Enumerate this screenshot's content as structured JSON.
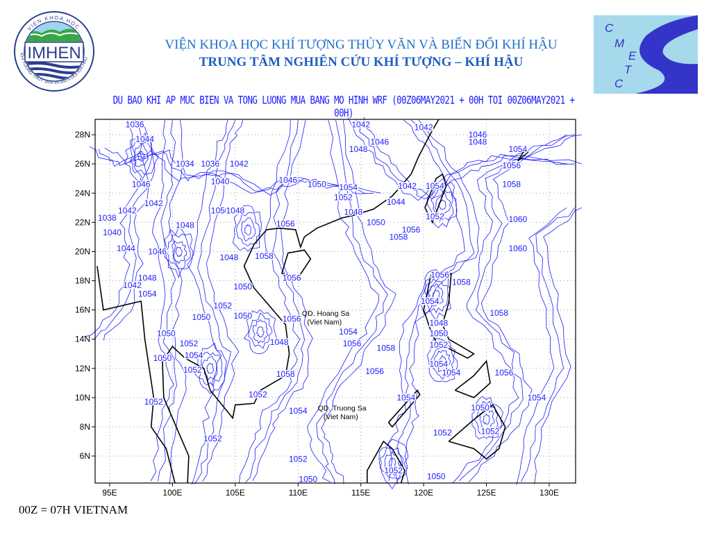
{
  "header": {
    "institute": "VIỆN KHOA HỌC KHÍ TƯỢNG THỦY VĂN VÀ BIẾN ĐỔI KHÍ HẬU",
    "center": "TRUNG TÂM NGHIÊN CỨU KHÍ TƯỢNG – KHÍ HẬU",
    "subtitle": "DU BAO KHI AP MUC BIEN VA TONG LUONG MUA BANG MO HINH WRF (00Z06MAY2021 + 00H TOI 00Z06MAY2021 + 00H)"
  },
  "logos": {
    "left": {
      "text": "IMHEN",
      "ring_top": "VIEN KHOA HOC",
      "ring_bottom": "KHI TUONG THUY VAN VA BIEN DOI KHI HAU"
    },
    "right": {
      "letters": [
        "C",
        "M",
        "E",
        "T",
        "C"
      ]
    }
  },
  "footer": {
    "note": "00Z = 07H VIETNAM"
  },
  "map": {
    "lon_range": [
      93.84,
      132.1
    ],
    "lat_range": [
      4.15,
      29.05
    ],
    "lon_ticks": [
      {
        "v": 95,
        "label": "95E"
      },
      {
        "v": 100,
        "label": "100E"
      },
      {
        "v": 105,
        "label": "105E"
      },
      {
        "v": 110,
        "label": "110E"
      },
      {
        "v": 115,
        "label": "115E"
      },
      {
        "v": 120,
        "label": "120E"
      },
      {
        "v": 125,
        "label": "125E"
      },
      {
        "v": 130,
        "label": "130E"
      }
    ],
    "lat_ticks": [
      {
        "v": 6,
        "label": "6N"
      },
      {
        "v": 8,
        "label": "8N"
      },
      {
        "v": 10,
        "label": "10N"
      },
      {
        "v": 12,
        "label": "12N"
      },
      {
        "v": 14,
        "label": "14N"
      },
      {
        "v": 16,
        "label": "16N"
      },
      {
        "v": 18,
        "label": "18N"
      },
      {
        "v": 20,
        "label": "20N"
      },
      {
        "v": 22,
        "label": "22N"
      },
      {
        "v": 24,
        "label": "24N"
      },
      {
        "v": 26,
        "label": "26N"
      },
      {
        "v": 28,
        "label": "28N"
      }
    ],
    "grid": true,
    "colors": {
      "contour": "#1a1aff",
      "coast": "#000000",
      "grid": "#9a9a9a"
    },
    "contour_labels": [
      {
        "t": "1036",
        "lon": 97.0,
        "lat": 28.7
      },
      {
        "t": "1044",
        "lon": 97.8,
        "lat": 27.7
      },
      {
        "t": "1042",
        "lon": 115.0,
        "lat": 28.7
      },
      {
        "t": "1042",
        "lon": 120.0,
        "lat": 28.5
      },
      {
        "t": "1048",
        "lon": 114.8,
        "lat": 27.0
      },
      {
        "t": "1046",
        "lon": 116.5,
        "lat": 27.5
      },
      {
        "t": "1046",
        "lon": 124.3,
        "lat": 28.0
      },
      {
        "t": "1048",
        "lon": 124.3,
        "lat": 27.5
      },
      {
        "t": "1054",
        "lon": 127.5,
        "lat": 27.0
      },
      {
        "t": "1056",
        "lon": 127.0,
        "lat": 25.9
      },
      {
        "t": "1058",
        "lon": 127.0,
        "lat": 24.6
      },
      {
        "t": "1034",
        "lon": 101.0,
        "lat": 26.0
      },
      {
        "t": "1036",
        "lon": 103.0,
        "lat": 26.0
      },
      {
        "t": "1042",
        "lon": 105.3,
        "lat": 26.0
      },
      {
        "t": "1040",
        "lon": 103.8,
        "lat": 24.8
      },
      {
        "t": "1046",
        "lon": 109.2,
        "lat": 24.9
      },
      {
        "t": "1050",
        "lon": 111.5,
        "lat": 24.6
      },
      {
        "t": "1054",
        "lon": 114.0,
        "lat": 24.4
      },
      {
        "t": "1052",
        "lon": 113.6,
        "lat": 23.7
      },
      {
        "t": "1044",
        "lon": 117.8,
        "lat": 23.4
      },
      {
        "t": "1042",
        "lon": 118.7,
        "lat": 24.5
      },
      {
        "t": "1054",
        "lon": 120.9,
        "lat": 24.5
      },
      {
        "t": "1048",
        "lon": 114.4,
        "lat": 22.7
      },
      {
        "t": "1050",
        "lon": 116.2,
        "lat": 22.0
      },
      {
        "t": "1052",
        "lon": 120.9,
        "lat": 22.4
      },
      {
        "t": "1046",
        "lon": 97.5,
        "lat": 24.6
      },
      {
        "t": "1042",
        "lon": 98.5,
        "lat": 23.3
      },
      {
        "t": "1042",
        "lon": 96.4,
        "lat": 22.8
      },
      {
        "t": "1038",
        "lon": 94.8,
        "lat": 22.3
      },
      {
        "t": "1040",
        "lon": 95.2,
        "lat": 21.3
      },
      {
        "t": "1044",
        "lon": 96.3,
        "lat": 20.2
      },
      {
        "t": "1046",
        "lon": 98.8,
        "lat": 20.0
      },
      {
        "t": "1048",
        "lon": 101.0,
        "lat": 21.8
      },
      {
        "t": "1050",
        "lon": 103.8,
        "lat": 22.8
      },
      {
        "t": "1048",
        "lon": 105.0,
        "lat": 22.8
      },
      {
        "t": "1056",
        "lon": 109.0,
        "lat": 21.9
      },
      {
        "t": "1056",
        "lon": 119.0,
        "lat": 21.5
      },
      {
        "t": "1058",
        "lon": 118.0,
        "lat": 21.0
      },
      {
        "t": "1060",
        "lon": 127.5,
        "lat": 22.2
      },
      {
        "t": "1060",
        "lon": 127.5,
        "lat": 20.2
      },
      {
        "t": "1048",
        "lon": 104.5,
        "lat": 19.6
      },
      {
        "t": "1058",
        "lon": 107.3,
        "lat": 19.7
      },
      {
        "t": "1056",
        "lon": 109.5,
        "lat": 18.2
      },
      {
        "t": "1048",
        "lon": 98.0,
        "lat": 18.2
      },
      {
        "t": "1042",
        "lon": 96.8,
        "lat": 17.7
      },
      {
        "t": "1054",
        "lon": 98.0,
        "lat": 17.1
      },
      {
        "t": "1050",
        "lon": 105.6,
        "lat": 17.6
      },
      {
        "t": "1052",
        "lon": 104.0,
        "lat": 16.3
      },
      {
        "t": "1050",
        "lon": 102.3,
        "lat": 15.5
      },
      {
        "t": "1050",
        "lon": 105.6,
        "lat": 15.6
      },
      {
        "t": "1056",
        "lon": 109.5,
        "lat": 15.4
      },
      {
        "t": "1056",
        "lon": 121.3,
        "lat": 18.4
      },
      {
        "t": "1058",
        "lon": 123.0,
        "lat": 17.9
      },
      {
        "t": "1054",
        "lon": 120.5,
        "lat": 16.6
      },
      {
        "t": "1058",
        "lon": 126.0,
        "lat": 15.8
      },
      {
        "t": "1048",
        "lon": 121.2,
        "lat": 15.1
      },
      {
        "t": "1050",
        "lon": 121.2,
        "lat": 14.4
      },
      {
        "t": "1052",
        "lon": 121.2,
        "lat": 13.6
      },
      {
        "t": "1054",
        "lon": 114.0,
        "lat": 14.5
      },
      {
        "t": "1056",
        "lon": 114.3,
        "lat": 13.7
      },
      {
        "t": "1058",
        "lon": 117.0,
        "lat": 13.4
      },
      {
        "t": "1050",
        "lon": 99.5,
        "lat": 14.4
      },
      {
        "t": "1052",
        "lon": 101.3,
        "lat": 13.7
      },
      {
        "t": "1048",
        "lon": 108.5,
        "lat": 13.8
      },
      {
        "t": "1054",
        "lon": 101.7,
        "lat": 12.9
      },
      {
        "t": "1050",
        "lon": 99.2,
        "lat": 12.7
      },
      {
        "t": "1052",
        "lon": 101.6,
        "lat": 11.9
      },
      {
        "t": "1054",
        "lon": 121.2,
        "lat": 12.3
      },
      {
        "t": "1054",
        "lon": 122.2,
        "lat": 11.7
      },
      {
        "t": "1056",
        "lon": 116.1,
        "lat": 11.8
      },
      {
        "t": "1058",
        "lon": 109.0,
        "lat": 11.6
      },
      {
        "t": "1056",
        "lon": 126.4,
        "lat": 11.7
      },
      {
        "t": "1052",
        "lon": 106.8,
        "lat": 10.2
      },
      {
        "t": "1052",
        "lon": 98.5,
        "lat": 9.7
      },
      {
        "t": "1054",
        "lon": 118.6,
        "lat": 10.0
      },
      {
        "t": "1050",
        "lon": 124.5,
        "lat": 9.3
      },
      {
        "t": "1054",
        "lon": 129.0,
        "lat": 10.0
      },
      {
        "t": "1054",
        "lon": 110.0,
        "lat": 9.1
      },
      {
        "t": "1052",
        "lon": 103.2,
        "lat": 7.2
      },
      {
        "t": "1052",
        "lon": 121.5,
        "lat": 7.6
      },
      {
        "t": "1052",
        "lon": 125.3,
        "lat": 7.7
      },
      {
        "t": "1052",
        "lon": 110.0,
        "lat": 5.8
      },
      {
        "t": "1052",
        "lon": 117.6,
        "lat": 5.0
      },
      {
        "t": "1050",
        "lon": 110.8,
        "lat": 4.4
      },
      {
        "t": "1050",
        "lon": 121.0,
        "lat": 4.6
      }
    ],
    "place_labels": [
      {
        "t": "QD. Hoang Sa",
        "lon": 112.2,
        "lat": 15.8
      },
      {
        "t": "(Viet Nam)",
        "lon": 112.1,
        "lat": 15.2
      },
      {
        "t": "QD. Truong Sa",
        "lon": 113.5,
        "lat": 9.3
      },
      {
        "t": "(Viet Nam)",
        "lon": 113.4,
        "lat": 8.7
      }
    ]
  }
}
